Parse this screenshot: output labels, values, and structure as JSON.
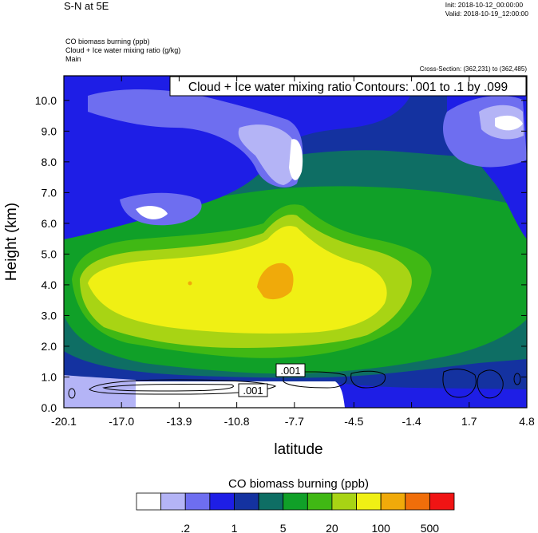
{
  "header": {
    "title": "S-N at 5E",
    "init": "Init: 2018-10-12_00:00:00",
    "valid": "Valid: 2018-10-19_12:00:00",
    "field1": "CO biomass burning   (ppb)",
    "field2": "Cloud + Ice water mixing ratio   (g/kg)",
    "field3": "Main",
    "cross_section": "Cross-Section: (362,231) to (362,485)",
    "contour_note": "Cloud + Ice water mixing ratio Contours: .001 to .1 by .099"
  },
  "chart_data": {
    "type": "heatmap",
    "xlabel": "latitude",
    "ylabel": "Height (km)",
    "xlim": [
      -20.1,
      4.8
    ],
    "ylim": [
      0.0,
      10.8
    ],
    "x_ticks": [
      "-20.1",
      "-17.0",
      "-13.9",
      "-10.8",
      "-7.7",
      "-4.5",
      "-1.4",
      "1.7",
      "4.8"
    ],
    "y_ticks": [
      "0.0",
      "1.0",
      "2.0",
      "3.0",
      "4.0",
      "5.0",
      "6.0",
      "7.0",
      "8.0",
      "9.0",
      "10.0"
    ],
    "contour_labels": [
      ".001",
      ".001"
    ],
    "colorbar": {
      "title": "CO biomass burning  (ppb)",
      "colors": [
        "#ffffff",
        "#b4b4f6",
        "#6e6ef0",
        "#1e1ee6",
        "#1432a0",
        "#0e6e64",
        "#10a028",
        "#40b814",
        "#a8d414",
        "#f0f014",
        "#f0aa0a",
        "#f06e0a",
        "#f01414"
      ],
      "labels": [
        ".2",
        "1",
        "5",
        "20",
        "100",
        "500"
      ]
    }
  }
}
